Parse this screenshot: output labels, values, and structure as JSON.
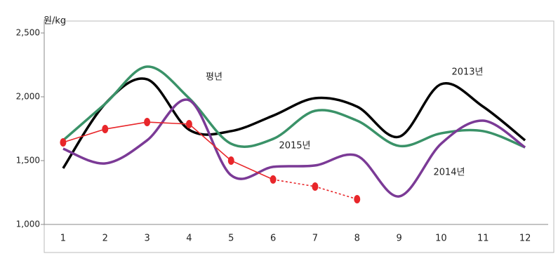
{
  "chart_data": {
    "type": "line",
    "y_unit": "원/kg",
    "x": [
      1,
      2,
      3,
      4,
      5,
      6,
      7,
      8,
      9,
      10,
      11,
      12
    ],
    "xlim": [
      0.55,
      12.55
    ],
    "xticks": [
      1,
      2,
      3,
      4,
      5,
      6,
      7,
      8,
      9,
      10,
      11,
      12
    ],
    "ylim": [
      1000,
      2500
    ],
    "yticks": [
      {
        "value": 1000,
        "label": "1,000"
      },
      {
        "value": 1500,
        "label": "1,500"
      },
      {
        "value": 2000,
        "label": "2,000"
      },
      {
        "value": 2500,
        "label": "2,500"
      }
    ],
    "series": [
      {
        "name": "2013년",
        "color": "#000000",
        "values": [
          1440,
          1945,
          2137,
          1742,
          1731,
          1852,
          1989,
          1923,
          1687,
          2099,
          1923,
          1659
        ]
      },
      {
        "name": "평년",
        "color": "#3a9268",
        "values": [
          1659,
          1945,
          2236,
          1989,
          1632,
          1670,
          1890,
          1813,
          1615,
          1714,
          1731,
          1604
        ]
      },
      {
        "name": "2014년",
        "color": "#7b3a96",
        "values": [
          1593,
          1478,
          1659,
          1973,
          1385,
          1451,
          1462,
          1538,
          1220,
          1632,
          1813,
          1604
        ]
      },
      {
        "name": "2015년",
        "color": "#e8262a",
        "markers": true,
        "dash_from_x": 6,
        "values": [
          1643,
          1747,
          1802,
          1786,
          1500,
          1352,
          1297,
          1198,
          null,
          null,
          null,
          null
        ]
      }
    ]
  }
}
